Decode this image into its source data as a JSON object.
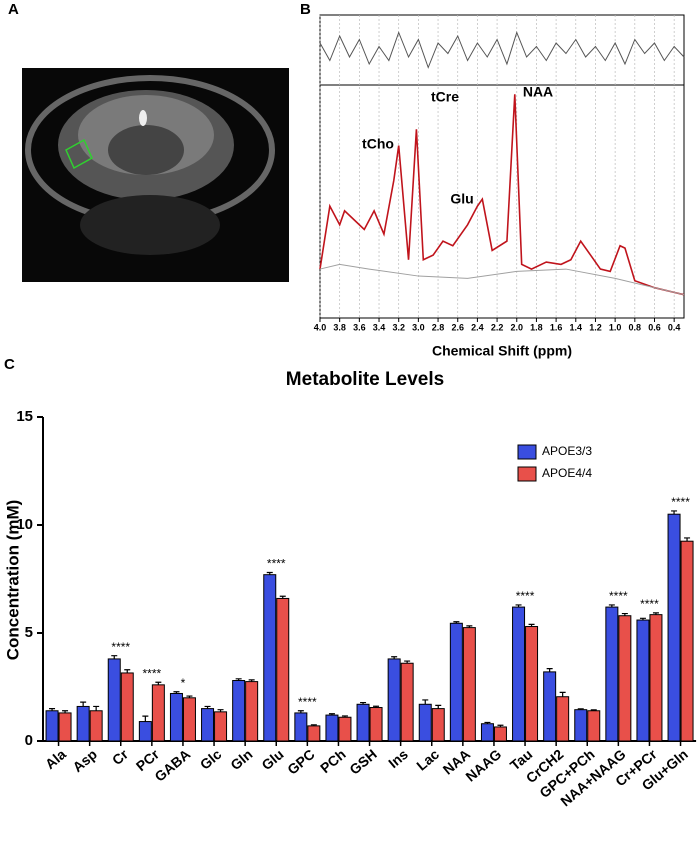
{
  "panel_labels": [
    "A",
    "B",
    "C"
  ],
  "chart_data": [
    {
      "type": "line",
      "xlabel": "Chemical Shift (ppm)",
      "annotations": [
        "tCho",
        "tCre",
        "Glu",
        "NAA"
      ],
      "xlim": [
        4.0,
        0.3
      ],
      "xticks": [
        {
          "value": 4.0,
          "label": "4.0"
        },
        3.8,
        3.6,
        3.4,
        3.2,
        {
          "value": 3.0,
          "label": "3.0"
        },
        2.8,
        2.6,
        2.4,
        2.2,
        {
          "value": 2.0,
          "label": "2.0"
        },
        1.8,
        1.6,
        1.4,
        1.2,
        {
          "value": 1.0,
          "label": "1.0"
        },
        0.8,
        0.6,
        0.4
      ],
      "ylim": [
        0,
        100
      ],
      "y2lim": [
        -10,
        10
      ],
      "grid": true,
      "series": [
        {
          "color": "#c0141c",
          "x": [
            4.0,
            3.9,
            3.8,
            3.75,
            3.65,
            3.55,
            3.45,
            3.35,
            3.25,
            3.2,
            3.1,
            3.02,
            2.95,
            2.85,
            2.75,
            2.65,
            2.5,
            2.4,
            2.35,
            2.25,
            2.1,
            2.02,
            1.95,
            1.85,
            1.7,
            1.55,
            1.45,
            1.35,
            1.25,
            1.15,
            1.05,
            0.95,
            0.9,
            0.8,
            0.6,
            0.4,
            0.3
          ],
          "values": [
            21,
            48,
            40,
            46,
            42,
            38,
            46,
            36,
            59,
            74,
            25,
            81,
            25,
            27,
            33,
            31,
            40,
            48,
            51,
            29,
            33,
            96,
            23,
            21,
            24,
            23,
            25,
            33,
            27,
            21,
            20,
            31,
            30,
            16,
            13,
            11,
            10
          ]
        },
        {
          "color": "#a0a0a0",
          "x": [
            4.0,
            3.8,
            3.5,
            3.0,
            2.5,
            2.0,
            1.5,
            1.0,
            0.5,
            0.3
          ],
          "values": [
            21,
            23,
            21,
            18,
            17,
            20,
            21,
            17,
            12,
            10
          ]
        },
        {
          "color": "#555555",
          "axis": "y2",
          "x": [
            4.0,
            3.9,
            3.8,
            3.7,
            3.6,
            3.5,
            3.4,
            3.3,
            3.2,
            3.1,
            3.0,
            2.9,
            2.8,
            2.7,
            2.6,
            2.5,
            2.4,
            2.3,
            2.2,
            2.1,
            2.0,
            1.9,
            1.8,
            1.7,
            1.6,
            1.5,
            1.4,
            1.3,
            1.2,
            1.1,
            1.0,
            0.9,
            0.8,
            0.7,
            0.6,
            0.5,
            0.4,
            0.3
          ],
          "values": [
            2,
            -3,
            4,
            -2,
            3,
            -4,
            1,
            -3,
            5,
            -2,
            3,
            -5,
            2,
            -1,
            4,
            -3,
            2,
            -2,
            3,
            -4,
            5,
            -2,
            1,
            -3,
            2,
            -1,
            3,
            -2,
            1,
            -3,
            2,
            -4,
            3,
            -1,
            2,
            -3,
            1,
            -2
          ]
        }
      ]
    },
    {
      "type": "bar",
      "title": "Metabolite Levels",
      "ylabel": "Concentration (mM)",
      "categories": [
        "Ala",
        "Asp",
        "Cr",
        "PCr",
        "GABA",
        "Glc",
        "Gln",
        "Glu",
        "GPC",
        "PCh",
        "GSH",
        "Ins",
        "Lac",
        "NAA",
        "NAAG",
        "Tau",
        "CrCH2",
        "GPC+PCh",
        "NAA+NAAG",
        "Cr+PCr",
        "Glu+Gln"
      ],
      "ylim": [
        0,
        15
      ],
      "yticks": [
        0,
        5,
        10,
        15
      ],
      "legend": "top-right",
      "significance": [
        null,
        null,
        "****",
        "****",
        "*",
        null,
        null,
        "****",
        "****",
        null,
        null,
        null,
        null,
        null,
        null,
        "****",
        null,
        null,
        "****",
        "****",
        "****"
      ],
      "series": [
        {
          "name": "APOE3/3",
          "color": "#3a4ee0",
          "values": [
            1.4,
            1.6,
            3.8,
            0.9,
            2.2,
            1.5,
            2.8,
            7.7,
            1.3,
            1.2,
            1.7,
            3.8,
            1.7,
            5.45,
            0.8,
            6.2,
            3.2,
            1.45,
            6.2,
            5.6,
            10.5
          ],
          "errors": [
            0.1,
            0.2,
            0.15,
            0.25,
            0.08,
            0.1,
            0.08,
            0.1,
            0.1,
            0.06,
            0.08,
            0.1,
            0.2,
            0.07,
            0.06,
            0.1,
            0.15,
            0.04,
            0.1,
            0.08,
            0.15
          ]
        },
        {
          "name": "APOE4/4",
          "color": "#e8504a",
          "values": [
            1.3,
            1.4,
            3.15,
            2.6,
            2.0,
            1.35,
            2.75,
            6.6,
            0.7,
            1.1,
            1.55,
            3.6,
            1.5,
            5.25,
            0.65,
            5.3,
            2.05,
            1.4,
            5.8,
            5.85,
            9.25
          ],
          "errors": [
            0.1,
            0.2,
            0.15,
            0.12,
            0.08,
            0.1,
            0.08,
            0.1,
            0.05,
            0.06,
            0.06,
            0.1,
            0.15,
            0.08,
            0.08,
            0.1,
            0.2,
            0.04,
            0.1,
            0.08,
            0.15
          ]
        }
      ]
    }
  ]
}
